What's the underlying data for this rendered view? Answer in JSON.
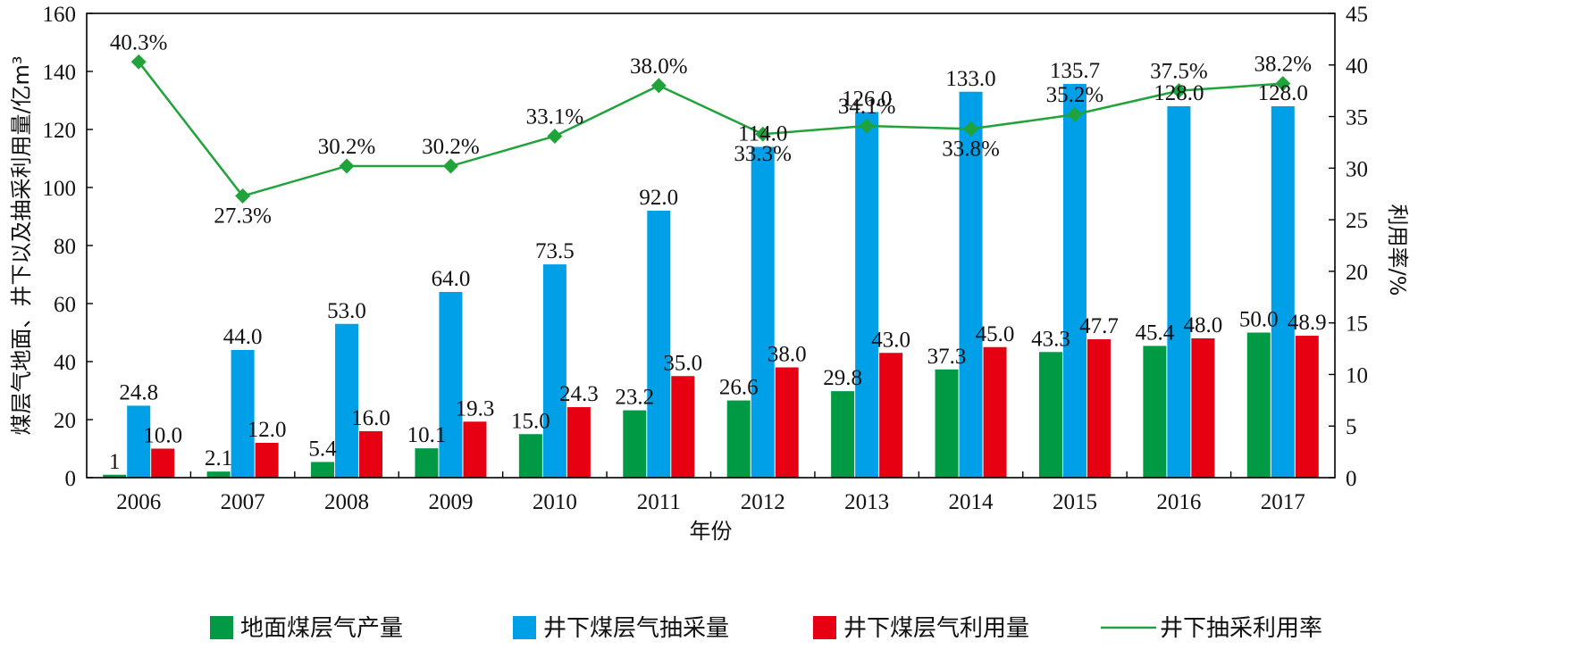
{
  "chart_data": {
    "type": "bar",
    "categories": [
      "2006",
      "2007",
      "2008",
      "2009",
      "2010",
      "2011",
      "2012",
      "2013",
      "2014",
      "2015",
      "2016",
      "2017"
    ],
    "series": [
      {
        "name": "地面煤层气产量",
        "kind": "bar",
        "axis": "left",
        "color": "#009944",
        "values": [
          1,
          2.1,
          5.4,
          10.1,
          15.0,
          23.2,
          26.6,
          29.8,
          37.3,
          43.3,
          45.4,
          50.0
        ],
        "labels": [
          "1",
          "2.1",
          "5.4",
          "10.1",
          "15.0",
          "23.2",
          "26.6",
          "29.8",
          "37.3",
          "43.3",
          "45.4",
          "50.0"
        ]
      },
      {
        "name": "井下煤层气抽采量",
        "kind": "bar",
        "axis": "left",
        "color": "#00A0E9",
        "values": [
          24.8,
          44.0,
          53.0,
          64.0,
          73.5,
          92.0,
          114.0,
          126.0,
          133.0,
          135.7,
          128.0,
          128.0
        ],
        "labels": [
          "24.8",
          "44.0",
          "53.0",
          "64.0",
          "73.5",
          "92.0",
          "114.0",
          "126.0",
          "133.0",
          "135.7",
          "128.0",
          "128.0"
        ]
      },
      {
        "name": "井下煤层气利用量",
        "kind": "bar",
        "axis": "left",
        "color": "#E60012",
        "values": [
          10.0,
          12.0,
          16.0,
          19.3,
          24.3,
          35.0,
          38.0,
          43.0,
          45.0,
          47.7,
          48.0,
          48.9
        ],
        "labels": [
          "10.0",
          "12.0",
          "16.0",
          "19.3",
          "24.3",
          "35.0",
          "38.0",
          "43.0",
          "45.0",
          "47.7",
          "48.0",
          "48.9"
        ]
      },
      {
        "name": "井下抽采利用率",
        "kind": "line",
        "axis": "right",
        "color": "#1FA33A",
        "values": [
          40.3,
          27.3,
          30.2,
          30.2,
          33.1,
          38.0,
          33.3,
          34.1,
          33.8,
          35.2,
          37.5,
          38.2
        ],
        "labels": [
          "40.3%",
          "27.3%",
          "30.2%",
          "30.2%",
          "33.1%",
          "38.0%",
          "33.3%",
          "34.1%",
          "33.8%",
          "35.2%",
          "37.5%",
          "38.2%"
        ]
      }
    ],
    "xlabel": "年份",
    "ylabel": "煤层气地面、井下以及抽采利用量/亿m³",
    "y2label": "利用率/%",
    "ylim": [
      0,
      160
    ],
    "yticks": [
      "0",
      "20",
      "40",
      "60",
      "80",
      "100",
      "120",
      "140",
      "160"
    ],
    "y2lim": [
      0,
      45
    ],
    "y2ticks": [
      "0",
      "5",
      "10",
      "15",
      "20",
      "25",
      "30",
      "35",
      "40",
      "45"
    ],
    "grid": false,
    "legend_position": "bottom"
  }
}
